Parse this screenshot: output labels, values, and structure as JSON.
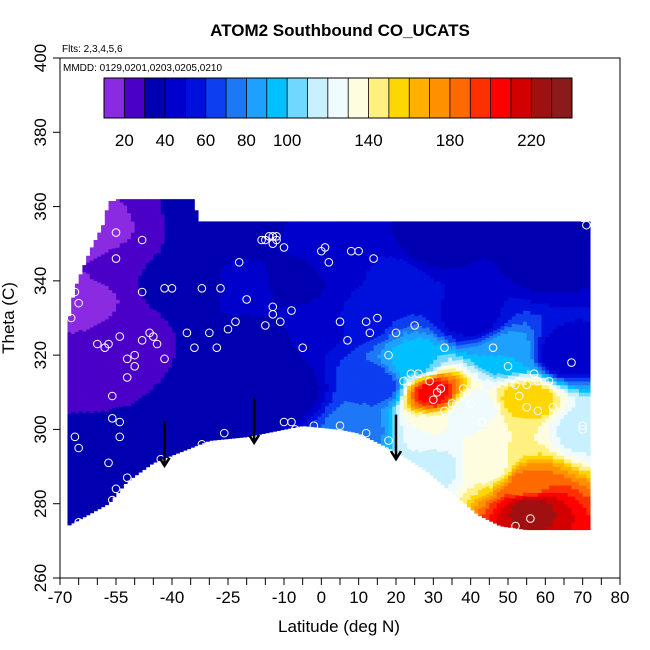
{
  "chart_data": {
    "type": "heatmap",
    "title": "ATOM2 Southbound CO_UCATS",
    "notes": [
      "Flts: 2,3,4,5,6",
      "MMDD: 0129,0201,0203,0205,0210"
    ],
    "xlabel": "Latitude (deg N)",
    "ylabel": "Theta (C)",
    "xlim": [
      -70,
      80
    ],
    "ylim": [
      260,
      400
    ],
    "x_tick_labels": [
      "-70",
      "-55",
      "-40",
      "-25",
      "-10",
      "0",
      "10",
      "20",
      "30",
      "40",
      "50",
      "60",
      "70",
      "80"
    ],
    "x_minor_ticks": [
      -65,
      -60,
      -50,
      -45,
      -35,
      -30,
      -20,
      -15,
      -5,
      5,
      15,
      25,
      35,
      45,
      55,
      65,
      75
    ],
    "y_ticks": [
      260,
      280,
      300,
      320,
      340,
      360,
      380,
      400
    ],
    "colorbar": {
      "labels": [
        20,
        40,
        60,
        80,
        100,
        140,
        180,
        220
      ],
      "boundaries": [
        10,
        20,
        30,
        40,
        50,
        60,
        70,
        80,
        90,
        100,
        110,
        120,
        130,
        140,
        150,
        160,
        170,
        180,
        190,
        200,
        210,
        220,
        230,
        240
      ],
      "colors": [
        "#8a2be2",
        "#4b00c8",
        "#0000b0",
        "#0000cc",
        "#0010dc",
        "#0d3ef0",
        "#1e78f5",
        "#1ea0ff",
        "#00c0ff",
        "#70d8ff",
        "#c8f0ff",
        "#f0fbff",
        "#fffde0",
        "#fff080",
        "#ffd700",
        "#ffb000",
        "#ff9000",
        "#ff6a00",
        "#ff3000",
        "#ff0000",
        "#d20000",
        "#a01010",
        "#8b1a1a"
      ]
    },
    "arrows_x": [
      -42,
      -18,
      20
    ],
    "tracer_field": [
      {
        "x": -65,
        "y": 335,
        "value": 10
      },
      {
        "x": -60,
        "y": 350,
        "value": 12
      },
      {
        "x": -60,
        "y": 318,
        "value": 28
      },
      {
        "x": -55,
        "y": 345,
        "value": 30
      },
      {
        "x": -50,
        "y": 325,
        "value": 28
      },
      {
        "x": -60,
        "y": 290,
        "value": 32
      },
      {
        "x": -45,
        "y": 300,
        "value": 30
      },
      {
        "x": -40,
        "y": 340,
        "value": 32
      },
      {
        "x": -30,
        "y": 338,
        "value": 35
      },
      {
        "x": -25,
        "y": 338,
        "value": 45
      },
      {
        "x": -20,
        "y": 320,
        "value": 32
      },
      {
        "x": -10,
        "y": 310,
        "value": 30
      },
      {
        "x": -5,
        "y": 340,
        "value": 38
      },
      {
        "x": 0,
        "y": 330,
        "value": 40
      },
      {
        "x": 5,
        "y": 345,
        "value": 45
      },
      {
        "x": 10,
        "y": 330,
        "value": 55
      },
      {
        "x": 15,
        "y": 312,
        "value": 62
      },
      {
        "x": 10,
        "y": 300,
        "value": 75
      },
      {
        "x": 20,
        "y": 340,
        "value": 55
      },
      {
        "x": 25,
        "y": 318,
        "value": 95
      },
      {
        "x": 30,
        "y": 310,
        "value": 205
      },
      {
        "x": 30,
        "y": 300,
        "value": 130
      },
      {
        "x": 30,
        "y": 290,
        "value": 115
      },
      {
        "x": 40,
        "y": 330,
        "value": 45
      },
      {
        "x": 40,
        "y": 305,
        "value": 120
      },
      {
        "x": 45,
        "y": 290,
        "value": 135
      },
      {
        "x": 50,
        "y": 320,
        "value": 90
      },
      {
        "x": 55,
        "y": 308,
        "value": 160
      },
      {
        "x": 50,
        "y": 298,
        "value": 140
      },
      {
        "x": 55,
        "y": 285,
        "value": 185
      },
      {
        "x": 56,
        "y": 279,
        "value": 225
      },
      {
        "x": 60,
        "y": 345,
        "value": 35
      },
      {
        "x": 65,
        "y": 320,
        "value": 40
      },
      {
        "x": 70,
        "y": 300,
        "value": 115
      },
      {
        "x": 70,
        "y": 355,
        "value": 30
      },
      {
        "x": -30,
        "y": 355,
        "value": 32
      },
      {
        "x": 30,
        "y": 350,
        "value": 35
      }
    ],
    "observations": [
      {
        "x": -67,
        "y": 330
      },
      {
        "x": -66,
        "y": 337
      },
      {
        "x": -65,
        "y": 334
      },
      {
        "x": -66,
        "y": 298
      },
      {
        "x": -65,
        "y": 295
      },
      {
        "x": -65,
        "y": 275
      },
      {
        "x": -55,
        "y": 353
      },
      {
        "x": -55,
        "y": 346
      },
      {
        "x": -48,
        "y": 351
      },
      {
        "x": -48,
        "y": 337
      },
      {
        "x": -60,
        "y": 323
      },
      {
        "x": -58,
        "y": 322
      },
      {
        "x": -57,
        "y": 323
      },
      {
        "x": -54,
        "y": 325
      },
      {
        "x": -52,
        "y": 319
      },
      {
        "x": -50,
        "y": 320
      },
      {
        "x": -48,
        "y": 324
      },
      {
        "x": -46,
        "y": 326
      },
      {
        "x": -45,
        "y": 325
      },
      {
        "x": -44,
        "y": 323
      },
      {
        "x": -42,
        "y": 319
      },
      {
        "x": -52,
        "y": 314
      },
      {
        "x": -50,
        "y": 317
      },
      {
        "x": -56,
        "y": 309
      },
      {
        "x": -56,
        "y": 303
      },
      {
        "x": -54,
        "y": 302
      },
      {
        "x": -54,
        "y": 298
      },
      {
        "x": -57,
        "y": 291
      },
      {
        "x": -52,
        "y": 287
      },
      {
        "x": -55,
        "y": 284
      },
      {
        "x": -56,
        "y": 281
      },
      {
        "x": -42,
        "y": 338
      },
      {
        "x": -40,
        "y": 338
      },
      {
        "x": -36,
        "y": 326
      },
      {
        "x": -32,
        "y": 338
      },
      {
        "x": -27,
        "y": 338
      },
      {
        "x": -25,
        "y": 327
      },
      {
        "x": -23,
        "y": 329
      },
      {
        "x": -20,
        "y": 335
      },
      {
        "x": -30,
        "y": 326
      },
      {
        "x": -28,
        "y": 322
      },
      {
        "x": -34,
        "y": 322
      },
      {
        "x": -43,
        "y": 292
      },
      {
        "x": -38,
        "y": 292
      },
      {
        "x": -32,
        "y": 296
      },
      {
        "x": -26,
        "y": 299
      },
      {
        "x": -22,
        "y": 345
      },
      {
        "x": -16,
        "y": 351
      },
      {
        "x": -15,
        "y": 351
      },
      {
        "x": -14,
        "y": 352
      },
      {
        "x": -13,
        "y": 352
      },
      {
        "x": -12,
        "y": 352
      },
      {
        "x": -12,
        "y": 351
      },
      {
        "x": -13,
        "y": 350
      },
      {
        "x": -13,
        "y": 331
      },
      {
        "x": -13,
        "y": 333
      },
      {
        "x": -15,
        "y": 328
      },
      {
        "x": -11,
        "y": 329
      },
      {
        "x": -10,
        "y": 302
      },
      {
        "x": -8,
        "y": 302
      },
      {
        "x": -7,
        "y": 300
      },
      {
        "x": -2,
        "y": 301
      },
      {
        "x": -10,
        "y": 349
      },
      {
        "x": -8,
        "y": 332
      },
      {
        "x": -5,
        "y": 322
      },
      {
        "x": 0,
        "y": 348
      },
      {
        "x": 1,
        "y": 349
      },
      {
        "x": 2,
        "y": 345
      },
      {
        "x": 5,
        "y": 329
      },
      {
        "x": 7,
        "y": 324
      },
      {
        "x": 8,
        "y": 348
      },
      {
        "x": 10,
        "y": 348
      },
      {
        "x": 12,
        "y": 329
      },
      {
        "x": 13,
        "y": 326
      },
      {
        "x": 14,
        "y": 346
      },
      {
        "x": 15,
        "y": 330
      },
      {
        "x": 5,
        "y": 301
      },
      {
        "x": 12,
        "y": 299
      },
      {
        "x": 18,
        "y": 297
      },
      {
        "x": 18,
        "y": 320
      },
      {
        "x": 20,
        "y": 326
      },
      {
        "x": 22,
        "y": 313
      },
      {
        "x": 24,
        "y": 315
      },
      {
        "x": 25,
        "y": 328
      },
      {
        "x": 26,
        "y": 315
      },
      {
        "x": 29,
        "y": 313
      },
      {
        "x": 30,
        "y": 308
      },
      {
        "x": 31,
        "y": 310
      },
      {
        "x": 32,
        "y": 311
      },
      {
        "x": 33,
        "y": 322
      },
      {
        "x": 33,
        "y": 305
      },
      {
        "x": 35,
        "y": 307
      },
      {
        "x": 38,
        "y": 311
      },
      {
        "x": 40,
        "y": 307
      },
      {
        "x": 43,
        "y": 302
      },
      {
        "x": 46,
        "y": 322
      },
      {
        "x": 50,
        "y": 317
      },
      {
        "x": 52,
        "y": 312
      },
      {
        "x": 53,
        "y": 309
      },
      {
        "x": 55,
        "y": 312
      },
      {
        "x": 57,
        "y": 315
      },
      {
        "x": 58,
        "y": 313
      },
      {
        "x": 55,
        "y": 306
      },
      {
        "x": 58,
        "y": 305
      },
      {
        "x": 61,
        "y": 313
      },
      {
        "x": 62,
        "y": 306
      },
      {
        "x": 67,
        "y": 318
      },
      {
        "x": 70,
        "y": 301
      },
      {
        "x": 70,
        "y": 300
      },
      {
        "x": 71,
        "y": 355
      },
      {
        "x": 70,
        "y": 357
      },
      {
        "x": 52,
        "y": 274
      },
      {
        "x": 56,
        "y": 276
      }
    ]
  }
}
